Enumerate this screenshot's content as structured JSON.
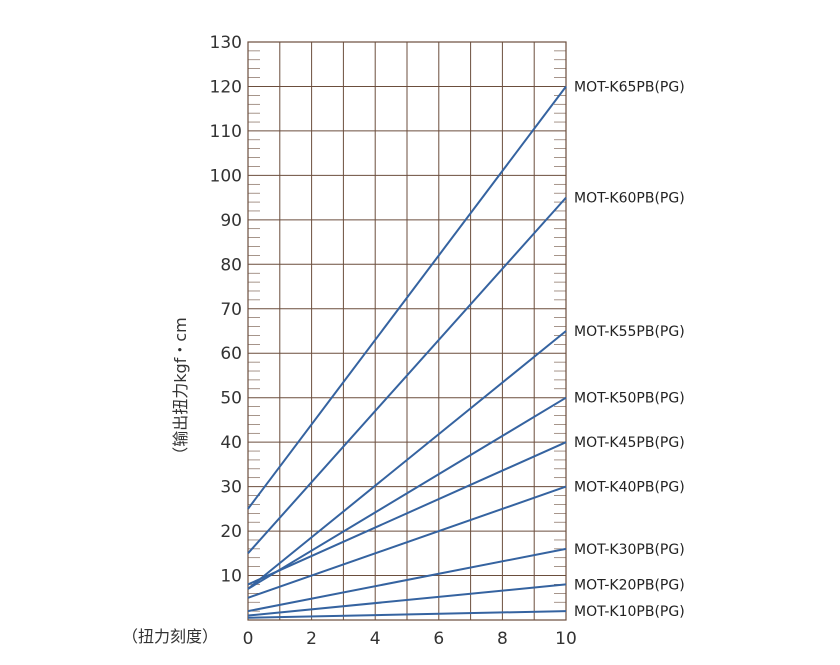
{
  "chart_data": {
    "type": "line",
    "title": "",
    "ylabel": "（输出扭力kgf・cm",
    "xlabel": "（扭力刻度）",
    "xlim": [
      0,
      10
    ],
    "ylim": [
      0,
      130
    ],
    "x_ticks": [
      0,
      2,
      4,
      6,
      8,
      10
    ],
    "y_ticks": [
      10,
      20,
      30,
      40,
      50,
      60,
      70,
      80,
      90,
      100,
      110,
      120,
      130
    ],
    "x_major_step": 1,
    "y_major_step": 10,
    "minor_per_major": 5,
    "grid": true,
    "line_color": "#3563a0",
    "grid_color": "#6b4e3d",
    "series": [
      {
        "name": "MOT-K65PB(PG)",
        "x": [
          0,
          10
        ],
        "values": [
          25,
          120
        ]
      },
      {
        "name": "MOT-K60PB(PG)",
        "x": [
          0,
          10
        ],
        "values": [
          15,
          95
        ]
      },
      {
        "name": "MOT-K55PB(PG)",
        "x": [
          0,
          10
        ],
        "values": [
          7,
          65
        ]
      },
      {
        "name": "MOT-K50PB(PG)",
        "x": [
          0,
          10
        ],
        "values": [
          7,
          50
        ]
      },
      {
        "name": "MOT-K45PB(PG)",
        "x": [
          0,
          10
        ],
        "values": [
          8,
          40
        ]
      },
      {
        "name": "MOT-K40PB(PG)",
        "x": [
          0,
          10
        ],
        "values": [
          5,
          30
        ]
      },
      {
        "name": "MOT-K30PB(PG)",
        "x": [
          0,
          10
        ],
        "values": [
          2,
          16
        ]
      },
      {
        "name": "MOT-K20PB(PG)",
        "x": [
          0,
          10
        ],
        "values": [
          1,
          8
        ]
      },
      {
        "name": "MOT-K10PB(PG)",
        "x": [
          0,
          10
        ],
        "values": [
          0.5,
          2
        ]
      }
    ]
  }
}
